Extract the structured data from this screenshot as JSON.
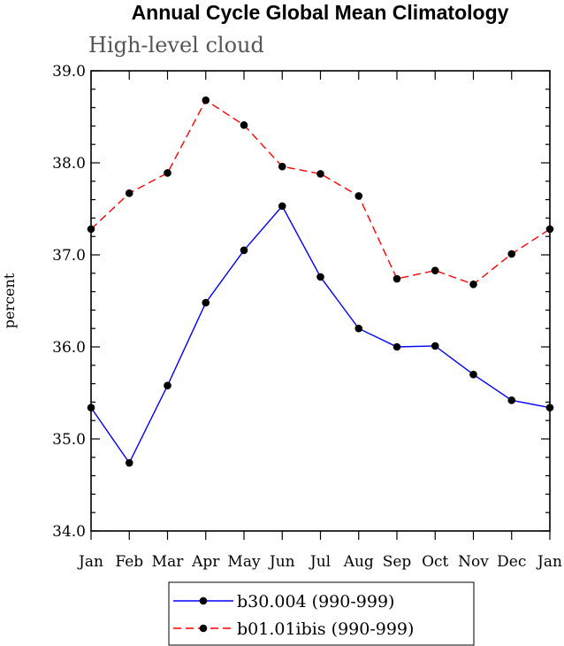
{
  "chart_data": {
    "type": "line",
    "title": "Annual Cycle Global Mean Climatology",
    "subtitle": "High-level cloud",
    "xlabel": "",
    "ylabel": "percent",
    "categories": [
      "Jan",
      "Feb",
      "Mar",
      "Apr",
      "May",
      "Jun",
      "Jul",
      "Aug",
      "Sep",
      "Oct",
      "Nov",
      "Dec",
      "Jan"
    ],
    "ylim": [
      34.0,
      39.0
    ],
    "yticks": [
      "34.0",
      "35.0",
      "36.0",
      "37.0",
      "38.0",
      "39.0"
    ],
    "grid": false,
    "legend_position": "bottom",
    "series": [
      {
        "name": "b30.004 (990-999)",
        "color": "#0000ff",
        "style": "solid",
        "marker": "dot",
        "values": [
          35.34,
          34.74,
          35.58,
          36.48,
          37.05,
          37.53,
          36.76,
          36.2,
          36.0,
          36.01,
          35.7,
          35.42,
          35.34
        ]
      },
      {
        "name": "b01.01ibis (990-999)",
        "color": "#ff0000",
        "style": "dashed",
        "marker": "dot",
        "values": [
          37.28,
          37.67,
          37.89,
          38.68,
          38.41,
          37.96,
          37.88,
          37.64,
          36.74,
          36.83,
          36.68,
          37.01,
          37.28
        ]
      }
    ]
  }
}
